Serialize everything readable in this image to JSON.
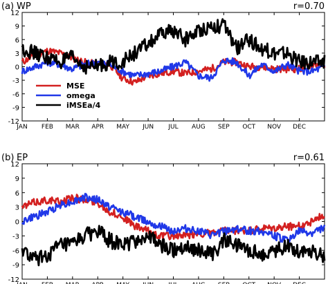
{
  "chart_data": [
    {
      "type": "line",
      "panel_label": "(a)",
      "region": "WP",
      "correlation": "r=0.70",
      "x_tick_labels": [
        "JAN",
        "FEB",
        "MAR",
        "APR",
        "MAY",
        "JUN",
        "JUL",
        "AUG",
        "SEP",
        "OCT",
        "NOV",
        "DEC"
      ],
      "y_tick_labels": [
        "12",
        "9",
        "6",
        "3",
        "0",
        "-3",
        "-6",
        "-9",
        "-12"
      ],
      "ylim": [
        -12,
        12
      ],
      "legend_placement": "lower-left",
      "x": [
        0,
        15,
        31,
        46,
        60,
        75,
        91,
        106,
        121,
        136,
        152,
        167,
        182,
        197,
        213,
        228,
        244,
        259,
        274,
        289,
        305,
        320,
        335,
        350,
        365
      ],
      "series": [
        {
          "name": "MSE",
          "color": "#d32020",
          "values": [
            1,
            2.5,
            3.5,
            3,
            2,
            1,
            0.5,
            0.5,
            -2.5,
            -3.5,
            -2,
            -1.5,
            -1,
            -1.5,
            -1,
            -0.5,
            1,
            1,
            0,
            0,
            -0.5,
            -0.5,
            -0.5,
            0.5,
            0.5
          ]
        },
        {
          "name": "omega",
          "color": "#2038e8",
          "values": [
            -1,
            0,
            1,
            0.5,
            -0.5,
            0.5,
            1,
            0.5,
            -1,
            -2,
            -1.5,
            -1,
            0,
            1,
            -2,
            -2.5,
            1.5,
            1,
            -2,
            0.5,
            -1,
            0.5,
            -1,
            -1,
            0
          ]
        },
        {
          "name": "iMSEa/4",
          "color": "#000000",
          "values": [
            4,
            3,
            2,
            1,
            2,
            0,
            0,
            1,
            1,
            3,
            5,
            7,
            8,
            6,
            8,
            9,
            9,
            4,
            6,
            4,
            3,
            3,
            1,
            1,
            1
          ]
        }
      ]
    },
    {
      "type": "line",
      "panel_label": "(b)",
      "region": "EP",
      "correlation": "r=0.61",
      "x_tick_labels": [
        "JAN",
        "FEB",
        "MAR",
        "APR",
        "MAY",
        "JUN",
        "JUL",
        "AUG",
        "SEP",
        "OCT",
        "NOV",
        "DEC"
      ],
      "y_tick_labels": [
        "12",
        "9",
        "6",
        "3",
        "0",
        "-3",
        "-6",
        "-9",
        "-12"
      ],
      "ylim": [
        -12,
        12
      ],
      "x": [
        0,
        15,
        31,
        46,
        60,
        75,
        91,
        106,
        121,
        136,
        152,
        167,
        182,
        197,
        213,
        228,
        244,
        259,
        274,
        289,
        305,
        320,
        335,
        350,
        365
      ],
      "series": [
        {
          "name": "MSE",
          "color": "#d32020",
          "values": [
            3,
            4,
            4.5,
            4,
            5,
            4.5,
            4,
            2,
            1,
            -1,
            -2,
            -3,
            -3,
            -3,
            -2.5,
            -2.5,
            -2,
            -2,
            -2,
            -1.5,
            -1.5,
            -1,
            -1,
            0,
            1.5
          ]
        },
        {
          "name": "omega",
          "color": "#2038e8",
          "values": [
            0,
            1,
            2,
            3.5,
            4,
            5,
            4.5,
            3,
            2,
            1,
            0,
            -1,
            -2,
            -1.5,
            -2,
            -3,
            -2,
            -1.5,
            -2,
            -2,
            -3,
            -4,
            -2,
            -2.5,
            -1
          ]
        },
        {
          "name": "iMSEa/4",
          "color": "#000000",
          "values": [
            -6,
            -8,
            -7,
            -5,
            -5,
            -3,
            -2,
            -4,
            -5,
            -4,
            -3,
            -5,
            -6,
            -5,
            -6,
            -7,
            -4,
            -5,
            -6,
            -7,
            -6,
            -5,
            -6,
            -6,
            -7
          ]
        }
      ]
    }
  ]
}
